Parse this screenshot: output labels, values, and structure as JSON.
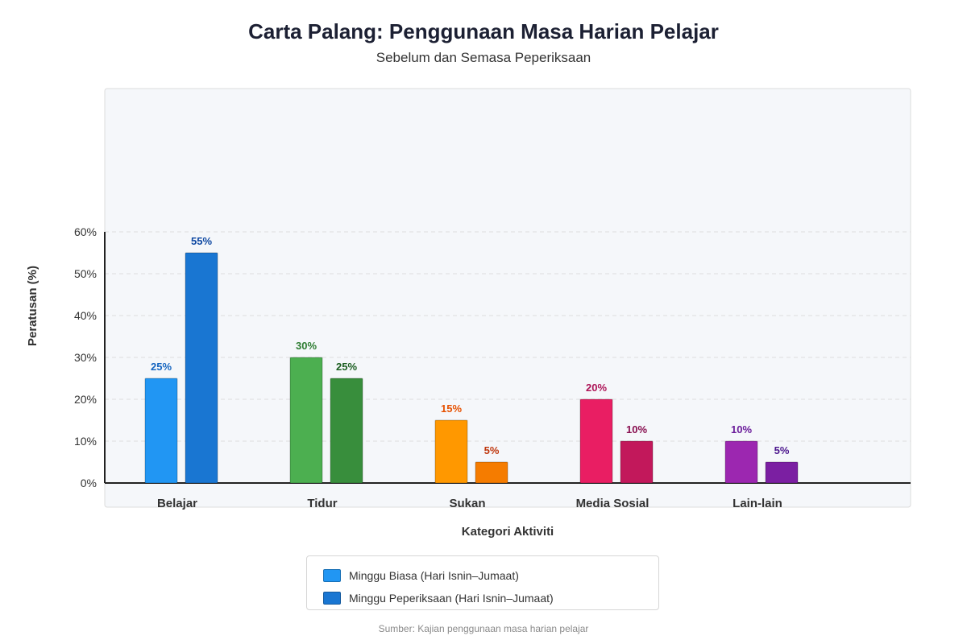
{
  "header": {
    "title": "Carta Palang: Penggunaan Masa Harian Pelajar",
    "subtitle": "Sebelum dan Semasa Peperiksaan"
  },
  "footer": {
    "source": "Sumber: Kajian penggunaan masa harian pelajar"
  },
  "chart_data": {
    "type": "bar",
    "title": "Carta Palang: Penggunaan Masa Harian Pelajar",
    "subtitle": "Sebelum dan Semasa Peperiksaan",
    "xlabel": "Kategori Aktiviti",
    "ylabel": "Peratusan (%)",
    "ylim": [
      0,
      60
    ],
    "yticks": [
      0,
      10,
      20,
      30,
      40,
      50,
      60
    ],
    "ytick_labels": [
      "0%",
      "10%",
      "20%",
      "30%",
      "40%",
      "50%",
      "60%"
    ],
    "grid": true,
    "legend_position": "bottom-center",
    "categories": [
      "Belajar",
      "Tidur",
      "Sukan",
      "Media Sosial",
      "Lain-lain"
    ],
    "series": [
      {
        "name": "Minggu Biasa (Hari Isnin–Jumaat)",
        "values": [
          25,
          30,
          15,
          20,
          10
        ],
        "labels": [
          "25%",
          "30%",
          "15%",
          "20%",
          "10%"
        ]
      },
      {
        "name": "Minggu Peperiksaan (Hari Isnin–Jumaat)",
        "values": [
          55,
          25,
          5,
          10,
          5
        ],
        "labels": [
          "55%",
          "25%",
          "5%",
          "10%",
          "5%"
        ]
      }
    ],
    "category_colors": [
      {
        "normal": "#2196f3",
        "exam": "#1976d2",
        "label_normal": "#1565c0",
        "label_exam": "#0d47a1"
      },
      {
        "normal": "#4caf50",
        "exam": "#388e3c",
        "label_normal": "#2e7d32",
        "label_exam": "#1b5e20"
      },
      {
        "normal": "#ff9800",
        "exam": "#f57c00",
        "label_normal": "#e65100",
        "label_exam": "#bf360c"
      },
      {
        "normal": "#e91e63",
        "exam": "#c2185b",
        "label_normal": "#ad1457",
        "label_exam": "#880e4f"
      },
      {
        "normal": "#9c27b0",
        "exam": "#7b1fa2",
        "label_normal": "#6a1b9a",
        "label_exam": "#4a148c"
      }
    ],
    "legend_colors": [
      "#2196f3",
      "#1976d2"
    ]
  }
}
